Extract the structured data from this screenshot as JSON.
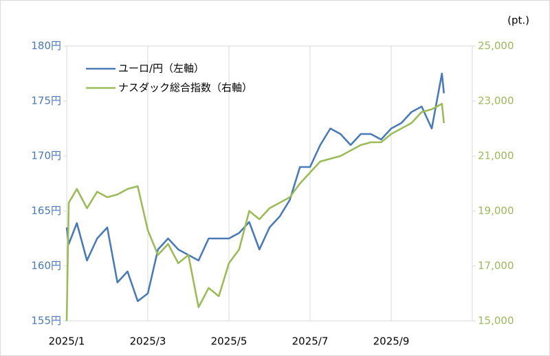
{
  "chart_data": {
    "type": "line",
    "x": [
      1.0,
      1.05,
      1.25,
      1.5,
      1.75,
      2.0,
      2.25,
      2.5,
      2.75,
      3.0,
      3.25,
      3.5,
      3.75,
      4.0,
      4.25,
      4.5,
      4.75,
      5.0,
      5.25,
      5.5,
      5.75,
      6.0,
      6.25,
      6.5,
      6.75,
      7.0,
      7.25,
      7.5,
      7.75,
      8.0,
      8.25,
      8.5,
      8.75,
      9.0,
      9.25,
      9.5,
      9.75,
      10.0,
      10.25,
      10.3
    ],
    "xlim": [
      1,
      11
    ],
    "xticks": [
      {
        "value": 1,
        "label": "2025/1"
      },
      {
        "value": 3,
        "label": "2025/3"
      },
      {
        "value": 5,
        "label": "2025/5"
      },
      {
        "value": 7,
        "label": "2025/7"
      },
      {
        "value": 9,
        "label": "2025/9"
      }
    ],
    "ylim": [
      155,
      180
    ],
    "yticks": [
      {
        "value": 155,
        "label": "155円"
      },
      {
        "value": 160,
        "label": "160円"
      },
      {
        "value": 165,
        "label": "165円"
      },
      {
        "value": 170,
        "label": "170円"
      },
      {
        "value": 175,
        "label": "175円"
      },
      {
        "value": 180,
        "label": "180円"
      }
    ],
    "y2lim": [
      15000,
      25000
    ],
    "y2ticks": [
      {
        "value": 15000,
        "label": "15,000"
      },
      {
        "value": 17000,
        "label": "17,000"
      },
      {
        "value": 19000,
        "label": "19,000"
      },
      {
        "value": 21000,
        "label": "21,000"
      },
      {
        "value": 23000,
        "label": "23,000"
      },
      {
        "value": 25000,
        "label": "25,000"
      }
    ],
    "y2_unit": "(pt.)",
    "grid": "x",
    "legend": "upper left",
    "series": [
      {
        "name": "ユーロ/円（左軸）",
        "color": "#4a7ab5",
        "axis": "y",
        "values": [
          163.5,
          162.0,
          163.9,
          160.5,
          162.5,
          163.5,
          158.5,
          159.5,
          156.8,
          157.5,
          161.5,
          162.5,
          161.5,
          161.0,
          160.5,
          162.5,
          162.5,
          162.5,
          163.0,
          164.0,
          161.5,
          163.5,
          164.5,
          166.0,
          169.0,
          169.0,
          171.0,
          172.5,
          172.0,
          171.0,
          172.0,
          172.0,
          171.5,
          172.5,
          173.0,
          174.0,
          174.5,
          172.5,
          177.5,
          175.7
        ]
      },
      {
        "name": "ナスダック総合指数（右軸）",
        "color": "#9bbb59",
        "axis": "y2",
        "values": [
          15000,
          19300,
          19800,
          19100,
          19700,
          19500,
          19600,
          19800,
          19900,
          18300,
          17400,
          17800,
          17100,
          17400,
          15500,
          16200,
          15900,
          17100,
          17600,
          19000,
          18700,
          19100,
          19300,
          19500,
          20000,
          20400,
          20800,
          20900,
          21000,
          21200,
          21400,
          21500,
          21500,
          21800,
          22000,
          22200,
          22600,
          22700,
          22900,
          22200
        ]
      }
    ]
  }
}
